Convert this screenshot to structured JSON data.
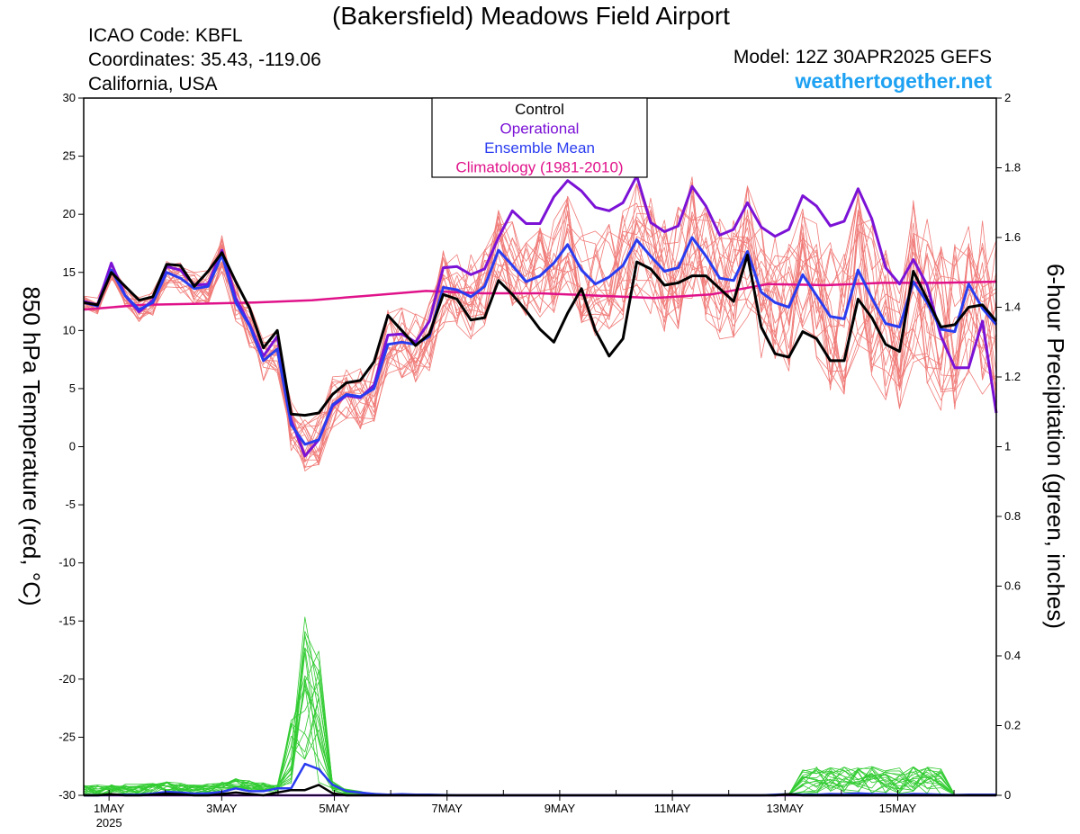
{
  "header": {
    "title": "(Bakersfield) Meadows Field Airport",
    "icao": "ICAO Code: KBFL",
    "coordinates": "Coordinates: 35.43, -119.06",
    "region": "California, USA",
    "model": "Model: 12Z 30APR2025 GEFS",
    "site": "weathertogether.net"
  },
  "chart_data": {
    "type": "line",
    "y_left_label": "850 hPa Temperature (red, °C)",
    "y_right_label": "6-hour Precipitation (green, inches)",
    "y_left_range": [
      -30,
      30
    ],
    "y_left_ticks": [
      "30",
      "25",
      "20",
      "15",
      "10",
      "5",
      "0",
      "-5",
      "-10",
      "-15",
      "-20",
      "-25",
      "-30"
    ],
    "y_right_range": [
      0,
      2
    ],
    "y_right_ticks": [
      "2",
      "1.8",
      "1.6",
      "1.4",
      "1.2",
      "1",
      "0.8",
      "0.6",
      "0.4",
      "0.2",
      "0"
    ],
    "x_range_days": [
      0.55,
      16.75
    ],
    "x_ticks": [
      {
        "day": 1,
        "label": "1MAY",
        "sub": "2025"
      },
      {
        "day": 3,
        "label": "3MAY"
      },
      {
        "day": 5,
        "label": "5MAY"
      },
      {
        "day": 7,
        "label": "7MAY"
      },
      {
        "day": 9,
        "label": "9MAY"
      },
      {
        "day": 11,
        "label": "11MAY"
      },
      {
        "day": 13,
        "label": "13MAY"
      },
      {
        "day": 15,
        "label": "15MAY"
      }
    ],
    "legend": {
      "placement": "top-center",
      "items": [
        {
          "label": "Control",
          "color": "#000000"
        },
        {
          "label": "Operational",
          "color": "#7b12d6"
        },
        {
          "label": "Ensemble Mean",
          "color": "#2a3cf0"
        },
        {
          "label": "Climatology (1981-2010)",
          "color": "#e0128a"
        }
      ]
    },
    "temperature_series": {
      "control": {
        "color": "#000000",
        "values": [
          12.4,
          12.2,
          15.0,
          13.8,
          12.6,
          12.9,
          15.7,
          15.6,
          13.8,
          15.1,
          16.7,
          14.2,
          11.9,
          8.5,
          10.0,
          2.8,
          2.7,
          2.9,
          4.5,
          5.5,
          5.7,
          7.3,
          11.3,
          10.0,
          8.7,
          9.7,
          13.1,
          12.7,
          10.9,
          11.1,
          14.3,
          13.1,
          11.7,
          10.1,
          9.0,
          11.5,
          13.6,
          10.0,
          7.8,
          9.3,
          15.9,
          15.3,
          13.9,
          14.1,
          14.7,
          14.7,
          13.6,
          12.5,
          16.5,
          10.3,
          8.0,
          7.7,
          9.9,
          9.3,
          7.4,
          7.4,
          12.7,
          11.1,
          8.8,
          8.2,
          15.1,
          12.7,
          10.3,
          10.5,
          12.0,
          12.2,
          10.8
        ]
      },
      "operational": {
        "color": "#7b12d6",
        "values": [
          12.5,
          12.2,
          15.8,
          13.0,
          11.6,
          12.6,
          15.5,
          15.2,
          13.9,
          14.0,
          16.9,
          12.8,
          10.5,
          7.8,
          9.5,
          2.3,
          -0.8,
          0.6,
          3.5,
          4.4,
          4.2,
          5.3,
          9.6,
          9.7,
          9.0,
          10.8,
          15.4,
          15.5,
          14.8,
          15.3,
          18.0,
          20.3,
          19.2,
          19.2,
          21.5,
          22.9,
          22.0,
          20.6,
          20.3,
          21.0,
          23.3,
          19.3,
          18.5,
          19.0,
          22.4,
          20.7,
          18.2,
          18.7,
          21.0,
          18.9,
          18.1,
          18.7,
          21.6,
          20.7,
          19.0,
          19.4,
          22.2,
          19.6,
          15.4,
          14.0,
          16.1,
          13.9,
          9.5,
          6.8,
          6.8,
          10.8,
          2.9
        ]
      },
      "mean": {
        "color": "#2a3cf0",
        "values": [
          12.4,
          12.1,
          15.2,
          13.0,
          11.8,
          12.4,
          15.0,
          14.5,
          13.6,
          13.8,
          16.5,
          12.4,
          10.4,
          7.4,
          8.4,
          1.9,
          0.2,
          0.6,
          3.6,
          4.5,
          4.3,
          5.0,
          8.8,
          9.0,
          8.8,
          9.5,
          13.7,
          13.5,
          12.9,
          13.8,
          16.9,
          15.6,
          14.2,
          14.7,
          15.8,
          17.4,
          15.2,
          14.0,
          14.6,
          15.6,
          17.8,
          16.4,
          15.1,
          15.4,
          18.0,
          16.4,
          14.5,
          14.3,
          16.8,
          13.3,
          12.4,
          12.0,
          14.8,
          13.0,
          11.2,
          11.0,
          15.2,
          12.8,
          10.6,
          10.3,
          14.2,
          12.4,
          10.1,
          9.9,
          14.0,
          11.9,
          10.5
        ]
      },
      "climatology": {
        "color": "#e0128a",
        "values": [
          11.8,
          12.2,
          12.3,
          12.4,
          12.6,
          13.0,
          13.4,
          13.2,
          13.2,
          13.0,
          12.8,
          13.1,
          14.0,
          13.9,
          14.1,
          14.1,
          14.2
        ]
      },
      "members": {
        "color": "#f07b78",
        "count": 20,
        "seed": 7
      }
    },
    "precipitation_series": {
      "control": {
        "color": "#000000",
        "values": [
          0,
          0,
          0.003,
          0,
          0,
          0.002,
          0.005,
          0.003,
          0,
          0,
          0.004,
          0.008,
          0.004,
          0,
          0.008,
          0.015,
          0.015,
          0.03,
          0.006,
          0,
          0,
          0,
          0,
          0,
          0,
          0,
          0,
          0,
          0,
          0,
          0,
          0,
          0,
          0,
          0,
          0,
          0,
          0,
          0,
          0,
          0,
          0,
          0,
          0,
          0,
          0,
          0,
          0,
          0,
          0,
          0,
          0.003,
          0,
          0,
          0,
          0,
          0,
          0,
          0,
          0,
          0,
          0,
          0,
          0,
          0,
          0,
          0
        ]
      },
      "operational": {
        "color": "#7b12d6",
        "values": [
          0,
          0,
          0,
          0,
          0,
          0,
          0,
          0,
          0,
          0,
          0,
          0,
          0,
          0,
          0,
          0,
          0,
          0,
          0,
          0,
          0,
          0,
          0,
          0,
          0,
          0,
          0,
          0,
          0,
          0,
          0,
          0,
          0,
          0,
          0,
          0,
          0,
          0,
          0,
          0,
          0,
          0,
          0,
          0,
          0,
          0,
          0,
          0,
          0,
          0,
          0,
          0,
          0,
          0,
          0,
          0,
          0,
          0,
          0,
          0,
          0,
          0,
          0,
          0,
          0,
          0,
          0
        ]
      },
      "mean": {
        "color": "#2a3cf0",
        "values": [
          0,
          0,
          0.002,
          0.002,
          0.002,
          0.005,
          0.01,
          0.008,
          0.005,
          0.006,
          0.01,
          0.02,
          0.012,
          0.012,
          0.02,
          0.02,
          0.09,
          0.075,
          0.03,
          0.012,
          0.008,
          0.004,
          0.002,
          0.003,
          0.002,
          0.002,
          0.001,
          0,
          0,
          0,
          0,
          0,
          0,
          0,
          0,
          0,
          0,
          0,
          0,
          0,
          0,
          0,
          0,
          0,
          0,
          0,
          0,
          0,
          0,
          0,
          0.002,
          0.003,
          0.002,
          0.002,
          0.004,
          0.003,
          0.006,
          0.004,
          0.003,
          0.002,
          0.004,
          0.003,
          0.002,
          0.001,
          0.002,
          0.002,
          0.002
        ]
      },
      "members": {
        "color": "#33cc33",
        "count": 20,
        "seed": 11
      }
    }
  }
}
